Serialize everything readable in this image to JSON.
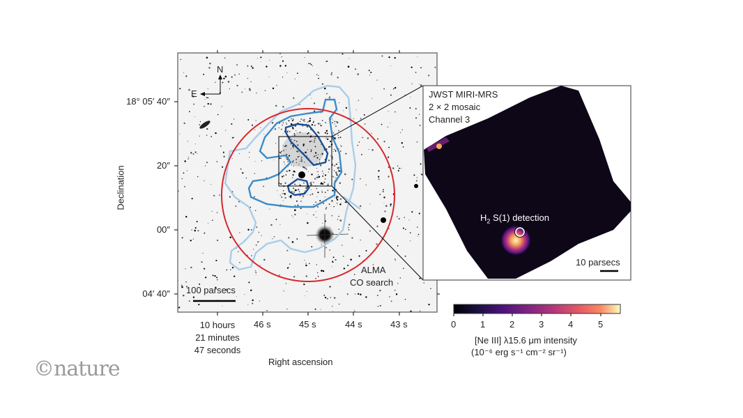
{
  "left_panel": {
    "compass": {
      "north": "N",
      "east": "E"
    },
    "y_axis_label": "Declination",
    "y_ticks": [
      "18° 05′ 40″",
      "20″",
      "00″",
      "04′ 40″"
    ],
    "x_axis_label": "Right ascension",
    "x_ticks": [
      "10 hours\n21 minutes\n47 seconds",
      "46 s",
      "45 s",
      "44 s",
      "43 s"
    ],
    "x_tick_first_lines": [
      "10 hours",
      "21 minutes",
      "47 seconds"
    ],
    "scale_bar": "100 parsecs",
    "circle_label_line1": "ALMA",
    "circle_label_line2": "CO search",
    "colors": {
      "circle": "#d9262b",
      "contour_outer": "#a9cde8",
      "contour_mid": "#3b8bc8",
      "contour_inner": "#1a4f95"
    }
  },
  "right_panel": {
    "title_lines": [
      "JWST MIRI-MRS",
      "2 × 2 mosaic",
      "Channel 3"
    ],
    "detection_label": "H",
    "detection_sub": "2",
    "detection_rest": " S(1) detection",
    "scale_bar": "10 parsecs"
  },
  "colorbar": {
    "ticks": [
      "0",
      "1",
      "2",
      "3",
      "4",
      "5"
    ],
    "label_line1": "[Ne III] λ15.6 μm intensity",
    "label_line2": "(10⁻⁶ erg s⁻¹ cm⁻² sr⁻¹)",
    "range": [
      0,
      5.7
    ],
    "colormap": "magma"
  },
  "logo": "©nature"
}
